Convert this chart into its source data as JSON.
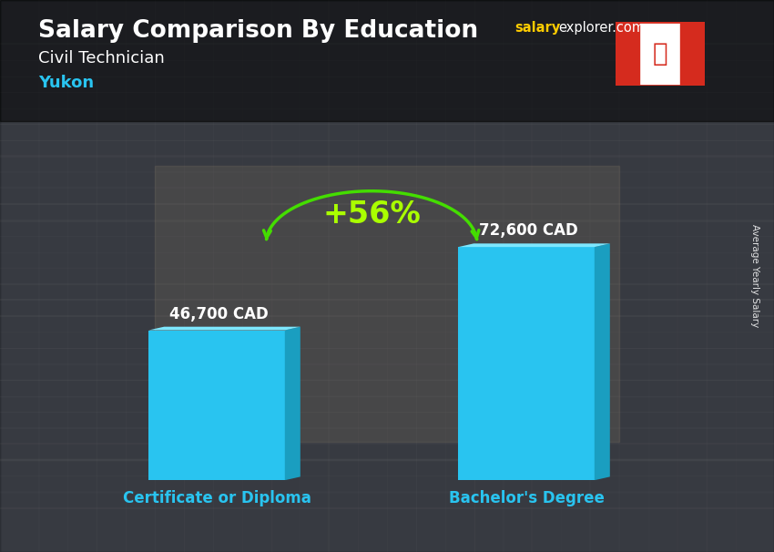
{
  "title_main": "Salary Comparison By Education",
  "title_salary_part": "salary",
  "title_explorer_part": "explorer.com",
  "subtitle_job": "Civil Technician",
  "subtitle_location": "Yukon",
  "categories": [
    "Certificate or Diploma",
    "Bachelor's Degree"
  ],
  "values": [
    46700,
    72600
  ],
  "value_labels": [
    "46,700 CAD",
    "72,600 CAD"
  ],
  "bar_color_main": "#29c4f0",
  "bar_color_side": "#1a9ec0",
  "bar_color_top": "#7de8ff",
  "pct_change": "+56%",
  "pct_color": "#aaff00",
  "arrow_color": "#44dd00",
  "ylabel_text": "Average Yearly Salary",
  "cat_label_color": "#29c4f0",
  "title_color": "#ffffff",
  "subtitle_job_color": "#ffffff",
  "subtitle_loc_color": "#29c4f0",
  "value_label_color": "#ffffff",
  "salary_text_color": "#ffcc00",
  "explorer_text_color": "#ffffff",
  "bg_color": "#4a5060",
  "overlay_color": "#000000",
  "overlay_alpha": 0.35
}
